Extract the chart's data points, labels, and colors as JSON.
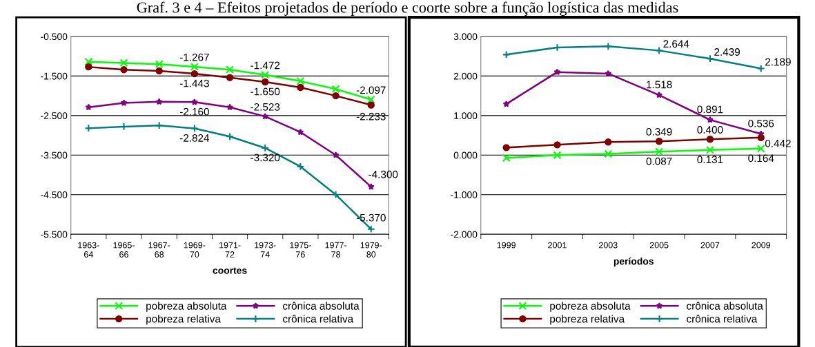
{
  "chart_data": [
    {
      "type": "line",
      "title": "Graf. 3 e 4 – Efeitos projetados de período e coorte sobre a função logística das medidas",
      "xlabel": "coortes",
      "categories": [
        "1963-\n64",
        "1965-\n66",
        "1967-\n68",
        "1969-\n70",
        "1971-\n72",
        "1973-\n74",
        "1975-\n76",
        "1977-\n78",
        "1979-\n80"
      ],
      "ylim": [
        -5.5,
        -0.5
      ],
      "yticks": [
        {
          "value": -5.5,
          "label": "-5.500"
        },
        {
          "value": -4.5,
          "label": "-4.500"
        },
        {
          "value": -3.5,
          "label": "-3.500"
        },
        {
          "value": -2.5,
          "label": "-2.500"
        },
        {
          "value": -1.5,
          "label": "-1.500"
        },
        {
          "value": -0.5,
          "label": "-0.500"
        }
      ],
      "grid": "y",
      "legend": "bottom",
      "series": [
        {
          "name": "pobreza absoluta",
          "color": "#00ff00",
          "marker": "cross",
          "values": [
            -1.14,
            -1.17,
            -1.2,
            -1.267,
            -1.34,
            -1.472,
            -1.63,
            -1.83,
            -2.097
          ],
          "value_labels": [
            null,
            null,
            null,
            "-1.267",
            null,
            "-1.472",
            null,
            null,
            "-2.097"
          ]
        },
        {
          "name": "crônica absoluta",
          "color": "#800080",
          "marker": "star",
          "values": [
            -2.29,
            -2.18,
            -2.15,
            -2.16,
            -2.29,
            -2.523,
            -2.92,
            -3.5,
            -4.3
          ],
          "value_labels": [
            null,
            null,
            null,
            "-2.160",
            null,
            "-2.523",
            null,
            null,
            "-4.300"
          ]
        },
        {
          "name": "pobreza relativa",
          "color": "#800000",
          "marker": "circle",
          "values": [
            -1.27,
            -1.34,
            -1.37,
            -1.443,
            -1.54,
            -1.65,
            -1.79,
            -2.0,
            -2.233
          ],
          "value_labels": [
            null,
            null,
            null,
            "-1.443",
            null,
            "-1.650",
            null,
            null,
            "-2.233"
          ]
        },
        {
          "name": "crônica relativa",
          "color": "#008080",
          "marker": "plus",
          "values": [
            -2.82,
            -2.78,
            -2.75,
            -2.824,
            -3.03,
            -3.32,
            -3.79,
            -4.5,
            -5.37
          ],
          "value_labels": [
            null,
            null,
            null,
            "-2.824",
            null,
            "-3.320",
            null,
            null,
            "-5.370"
          ]
        }
      ]
    },
    {
      "type": "line",
      "xlabel": "períodos",
      "categories": [
        "1999",
        "2001",
        "2003",
        "2005",
        "2007",
        "2009"
      ],
      "ylim": [
        -2.0,
        3.0
      ],
      "yticks": [
        {
          "value": -2.0,
          "label": "-2.000"
        },
        {
          "value": -1.0,
          "label": "-1.000"
        },
        {
          "value": 0.0,
          "label": "0.000"
        },
        {
          "value": 1.0,
          "label": "1.000"
        },
        {
          "value": 2.0,
          "label": "2.000"
        },
        {
          "value": 3.0,
          "label": "3.000"
        }
      ],
      "grid": "y",
      "legend": "bottom",
      "series": [
        {
          "name": "pobreza absoluta",
          "color": "#00ff00",
          "marker": "cross",
          "values": [
            -0.07,
            0.0,
            0.03,
            0.087,
            0.131,
            0.164
          ],
          "value_labels": [
            null,
            null,
            null,
            "0.087",
            "0.131",
            "0.164"
          ]
        },
        {
          "name": "crônica absoluta",
          "color": "#800080",
          "marker": "star",
          "values": [
            1.29,
            2.1,
            2.06,
            1.518,
            0.891,
            0.536
          ],
          "value_labels": [
            null,
            null,
            null,
            "1.518",
            "0.891",
            "0.536"
          ]
        },
        {
          "name": "pobreza relativa",
          "color": "#800000",
          "marker": "circle",
          "values": [
            0.19,
            0.26,
            0.33,
            0.349,
            0.4,
            0.442
          ],
          "value_labels": [
            null,
            null,
            null,
            "0.349",
            "0.400",
            "0.442"
          ]
        },
        {
          "name": "crônica relativa",
          "color": "#008080",
          "marker": "plus",
          "values": [
            2.54,
            2.72,
            2.75,
            2.644,
            2.439,
            2.189
          ],
          "value_labels": [
            null,
            null,
            null,
            "2.644",
            "2.439",
            "2.189"
          ]
        }
      ]
    }
  ]
}
